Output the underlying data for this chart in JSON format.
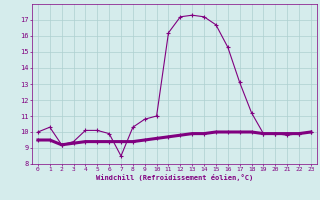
{
  "xlabel": "Windchill (Refroidissement éolien,°C)",
  "x_values": [
    0,
    1,
    2,
    3,
    4,
    5,
    6,
    7,
    8,
    9,
    10,
    11,
    12,
    13,
    14,
    15,
    16,
    17,
    18,
    19,
    20,
    21,
    22,
    23
  ],
  "line1_y": [
    10.0,
    10.3,
    9.2,
    9.4,
    10.1,
    10.1,
    9.9,
    8.5,
    10.3,
    10.8,
    11.0,
    16.2,
    17.2,
    17.3,
    17.2,
    16.7,
    15.3,
    13.1,
    11.2,
    9.9,
    9.9,
    9.8,
    9.9,
    10.0
  ],
  "line2_y": [
    9.5,
    9.5,
    9.2,
    9.3,
    9.4,
    9.4,
    9.4,
    9.4,
    9.4,
    9.5,
    9.6,
    9.7,
    9.8,
    9.9,
    9.9,
    10.0,
    10.0,
    10.0,
    10.0,
    9.9,
    9.9,
    9.9,
    9.9,
    10.0
  ],
  "line_color": "#800080",
  "bg_color": "#d5ecec",
  "grid_color": "#aed0d0",
  "ylim": [
    8,
    18
  ],
  "yticks": [
    8,
    9,
    10,
    11,
    12,
    13,
    14,
    15,
    16,
    17
  ],
  "xticks": [
    0,
    1,
    2,
    3,
    4,
    5,
    6,
    7,
    8,
    9,
    10,
    11,
    12,
    13,
    14,
    15,
    16,
    17,
    18,
    19,
    20,
    21,
    22,
    23
  ]
}
